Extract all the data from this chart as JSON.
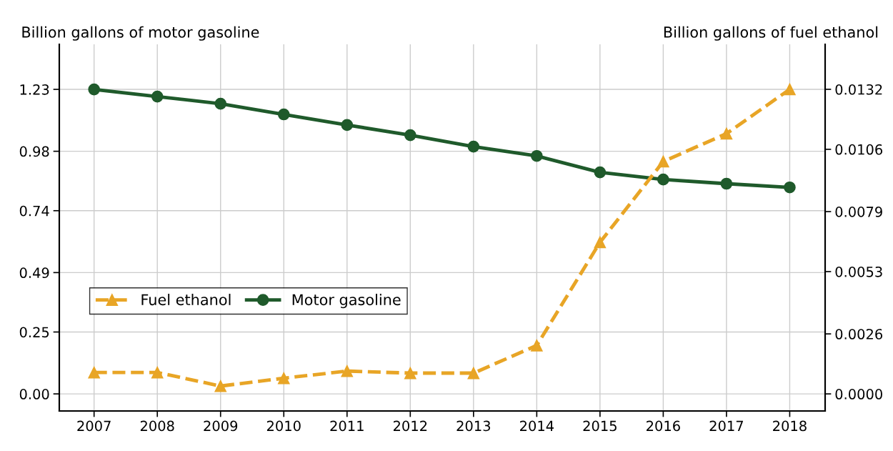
{
  "chart_data": {
    "type": "line",
    "x": [
      2007,
      2008,
      2009,
      2010,
      2011,
      2012,
      2013,
      2014,
      2015,
      2016,
      2017,
      2018
    ],
    "series": [
      {
        "name": "Fuel ethanol",
        "color": "#e8a526",
        "axis": "y2",
        "marker": "triangle",
        "line_style": "dashed",
        "values": [
          0.00093,
          0.00093,
          0.00034,
          0.00068,
          0.00099,
          0.0009,
          0.0009,
          0.0021,
          0.00657,
          0.01007,
          0.01128,
          0.0132
        ]
      },
      {
        "name": "Motor gasoline",
        "color": "#1f5a2b",
        "marker": "circle",
        "line_style": "solid",
        "values": [
          1.23,
          1.201,
          1.172,
          1.129,
          1.086,
          1.045,
          0.999,
          0.961,
          0.895,
          0.866,
          0.849,
          0.834
        ]
      }
    ],
    "ylabel": "Billion gallons of motor gasoline",
    "y2label": "Billion gallons of fuel ethanol",
    "xlim": [
      2006.45,
      2018.56
    ],
    "xticks": [
      2007,
      2008,
      2009,
      2010,
      2011,
      2012,
      2013,
      2014,
      2015,
      2016,
      2017,
      2018
    ],
    "ylim": [
      -0.069,
      1.412
    ],
    "yticks": [
      {
        "value": 0,
        "label": "0.00"
      },
      {
        "value": 0.25,
        "label": "0.25"
      },
      {
        "value": 0.49,
        "label": "0.49"
      },
      {
        "value": 0.74,
        "label": "0.74"
      },
      {
        "value": 0.98,
        "label": "0.98"
      },
      {
        "value": 1.23,
        "label": "1.23"
      }
    ],
    "y2lim": [
      -0.00074,
      0.01515
    ],
    "y2ticks": [
      {
        "value": 0,
        "label": "0.0000"
      },
      {
        "value": 0.0026,
        "label": "0.0026"
      },
      {
        "value": 0.0053,
        "label": "0.0053"
      },
      {
        "value": 0.0079,
        "label": "0.0079"
      },
      {
        "value": 0.0106,
        "label": "0.0106"
      },
      {
        "value": 0.0132,
        "label": "0.0132"
      }
    ],
    "grid": true,
    "legend": "left"
  }
}
